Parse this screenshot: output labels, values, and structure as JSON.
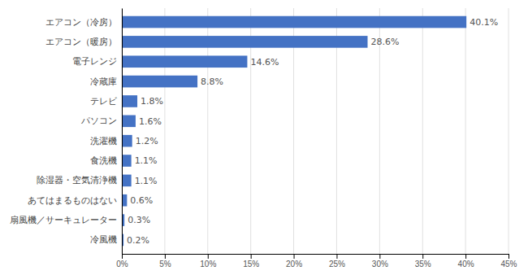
{
  "chart_data": {
    "type": "bar",
    "orientation": "horizontal",
    "categories": [
      "冷風機",
      "扇風機／サーキュレーター",
      "あてはまるものはない",
      "除湿器・空気清浄機",
      "食洗機",
      "洗濯機",
      "パソコン",
      "テレビ",
      "冷蔵庫",
      "電子レンジ",
      "エアコン（暖房）",
      "エアコン（冷房）"
    ],
    "values": [
      0.2,
      0.3,
      0.6,
      1.1,
      1.1,
      1.2,
      1.6,
      1.8,
      8.8,
      14.6,
      28.6,
      40.1
    ],
    "value_labels": [
      "0.2%",
      "0.3%",
      "0.6%",
      "1.1%",
      "1.1%",
      "1.2%",
      "1.6%",
      "1.8%",
      "8.8%",
      "14.6%",
      "28.6%",
      "40.1%"
    ],
    "data_labels": true,
    "color": "#4472c4",
    "xlim": [
      0,
      45
    ],
    "xticks": [
      {
        "value": 0,
        "label": "0%"
      },
      {
        "value": 5,
        "label": "5%"
      },
      {
        "value": 10,
        "label": "10%"
      },
      {
        "value": 15,
        "label": "15%"
      },
      {
        "value": 20,
        "label": "20%"
      },
      {
        "value": 25,
        "label": "25%"
      },
      {
        "value": 30,
        "label": "30%"
      },
      {
        "value": 35,
        "label": "35%"
      },
      {
        "value": 40,
        "label": "40%"
      },
      {
        "value": 45,
        "label": "45%"
      }
    ],
    "grid": true
  }
}
